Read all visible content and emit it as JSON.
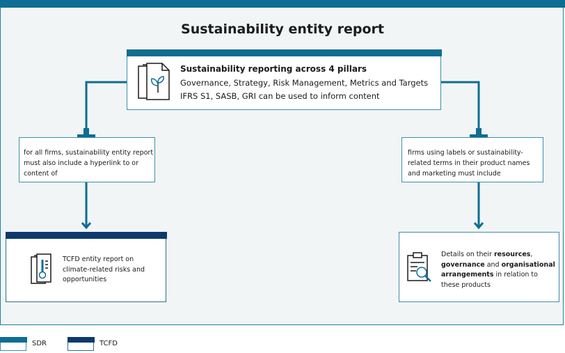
{
  "title": "Sustainability entity report",
  "pillars": {
    "heading": "Sustainability reporting across 4 pillars",
    "line1": "Governance, Strategy, Risk Management, Metrics and Targets",
    "line2": "IFRS S1, SASB, GRI can be used to inform content",
    "icon": "document-plant-icon"
  },
  "left_requirement": {
    "text": "for all firms, sustainability entity report must also include a hyperlink to or content of"
  },
  "right_requirement": {
    "text": "firms using labels or sustainability-related terms in their product names and marketing must include"
  },
  "left_output": {
    "icon": "document-thermometer-icon",
    "text": "TCFD entity report on climate-related risks and opportunities"
  },
  "right_output": {
    "icon": "checklist-magnifier-icon",
    "pre": "Details on their ",
    "b1": "resources",
    "sep1": ", ",
    "b2": "governance",
    "mid": " and ",
    "b3": "organisational arrangements",
    "post": " in relation to these products"
  },
  "legend": {
    "sdr": "SDR",
    "tcfd": "TCFD"
  },
  "colors": {
    "sdr": "#0e6d92",
    "tcfd": "#0d3a6b",
    "connector": "#0e6d92",
    "background": "#f1f5f6"
  }
}
